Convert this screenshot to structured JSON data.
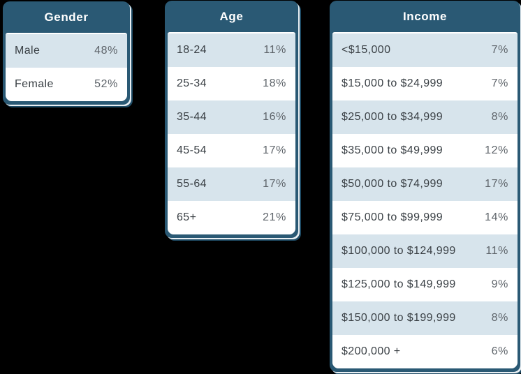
{
  "colors": {
    "header_bg": "#2a5974",
    "shadow_dark": "#1f4c66",
    "shadow_light": "#e9eff3",
    "row_alt_bg": "#d7e4ec",
    "row_bg": "#ffffff",
    "label_color": "#3a4045",
    "value_color": "#5e646a",
    "header_text": "#ffffff",
    "page_bg": "#000000"
  },
  "tables": [
    {
      "title": "Gender",
      "rows": [
        {
          "label": "Male",
          "value": "48%"
        },
        {
          "label": "Female",
          "value": "52%"
        }
      ]
    },
    {
      "title": "Age",
      "rows": [
        {
          "label": "18-24",
          "value": "11%"
        },
        {
          "label": "25-34",
          "value": "18%"
        },
        {
          "label": "35-44",
          "value": "16%"
        },
        {
          "label": "45-54",
          "value": "17%"
        },
        {
          "label": "55-64",
          "value": "17%"
        },
        {
          "label": "65+",
          "value": "21%"
        }
      ]
    },
    {
      "title": "Income",
      "rows": [
        {
          "label": "<$15,000",
          "value": "7%"
        },
        {
          "label": "$15,000 to $24,999",
          "value": "7%"
        },
        {
          "label": "$25,000 to $34,999",
          "value": "8%"
        },
        {
          "label": "$35,000 to $49,999",
          "value": "12%"
        },
        {
          "label": "$50,000 to $74,999",
          "value": "17%"
        },
        {
          "label": "$75,000 to $99,999",
          "value": "14%"
        },
        {
          "label": "$100,000 to $124,999",
          "value": "11%"
        },
        {
          "label": "$125,000 to $149,999",
          "value": "9%"
        },
        {
          "label": "$150,000 to $199,999",
          "value": "8%"
        },
        {
          "label": "$200,000 +",
          "value": "6%"
        }
      ]
    }
  ],
  "chart_data": [
    {
      "type": "table",
      "title": "Gender",
      "categories": [
        "Male",
        "Female"
      ],
      "values": [
        48,
        52
      ],
      "unit": "%"
    },
    {
      "type": "table",
      "title": "Age",
      "categories": [
        "18-24",
        "25-34",
        "35-44",
        "45-54",
        "55-64",
        "65+"
      ],
      "values": [
        11,
        18,
        16,
        17,
        17,
        21
      ],
      "unit": "%"
    },
    {
      "type": "table",
      "title": "Income",
      "categories": [
        "<$15,000",
        "$15,000 to $24,999",
        "$25,000 to $34,999",
        "$35,000 to $49,999",
        "$50,000 to $74,999",
        "$75,000 to $99,999",
        "$100,000 to $124,999",
        "$125,000 to $149,999",
        "$150,000 to $199,999",
        "$200,000 +"
      ],
      "values": [
        7,
        7,
        8,
        12,
        17,
        14,
        11,
        9,
        8,
        6
      ],
      "unit": "%"
    }
  ]
}
